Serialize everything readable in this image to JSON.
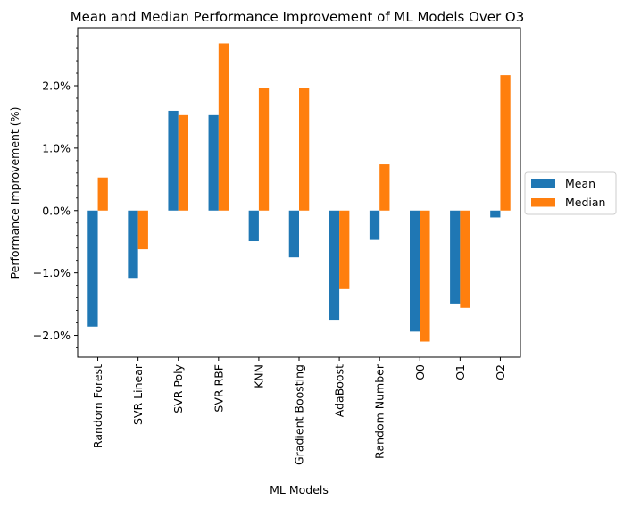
{
  "chart_data": {
    "type": "bar",
    "title": "Mean and Median Performance Improvement of ML Models Over O3",
    "xlabel": "ML Models",
    "ylabel": "Performance Improvement (%)",
    "categories": [
      "Random Forest",
      "SVR Linear",
      "SVR Poly",
      "SVR RBF",
      "KNN",
      "Gradient Boosting",
      "AdaBoost",
      "Random Number",
      "O0",
      "O1",
      "O2"
    ],
    "series": [
      {
        "name": "Mean",
        "color": "#1f77b4",
        "values": [
          -1.86,
          -1.08,
          1.6,
          1.53,
          -0.49,
          -0.75,
          -1.75,
          -0.47,
          -1.94,
          -1.49,
          -0.11
        ]
      },
      {
        "name": "Median",
        "color": "#ff7f0e",
        "values": [
          0.53,
          -0.62,
          1.53,
          2.68,
          1.97,
          1.96,
          -1.26,
          0.74,
          -2.1,
          -1.56,
          2.17
        ]
      }
    ],
    "ylim": [
      -2.35,
      2.93
    ],
    "yticks": [
      -2.0,
      -1.0,
      0.0,
      1.0,
      2.0
    ],
    "ytick_labels": [
      "−2.0%",
      "−1.0%",
      "0.0%",
      "1.0%",
      "2.0%"
    ],
    "grid": false,
    "legend_position": "right outside"
  }
}
